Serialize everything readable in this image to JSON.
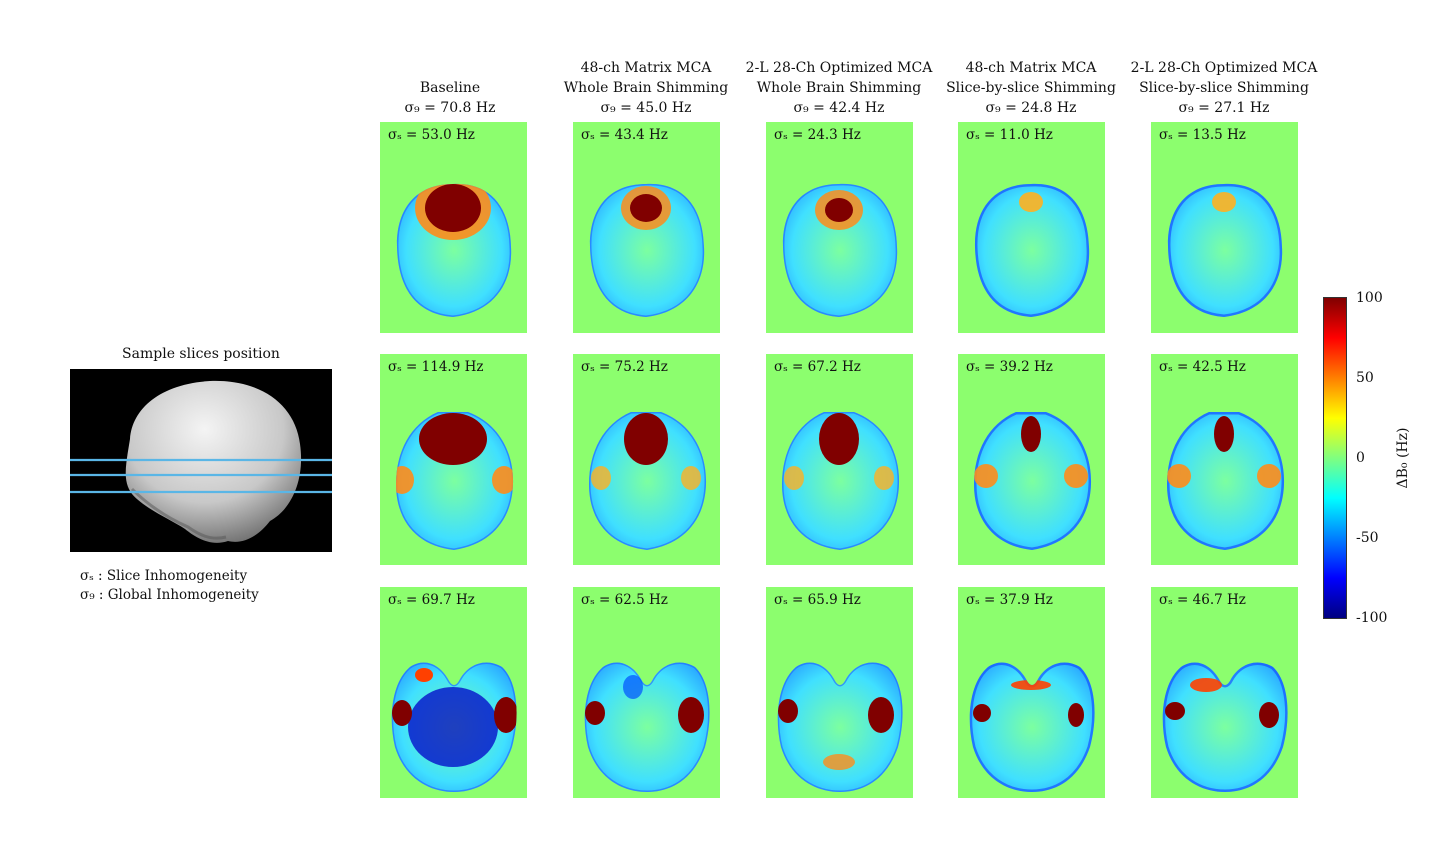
{
  "columns": [
    {
      "line1": "",
      "line2": "Baseline",
      "sigma_g": "σ₉ = 70.8 Hz"
    },
    {
      "line1": "48-ch Matrix MCA",
      "line2": "Whole Brain Shimming",
      "sigma_g": "σ₉ = 45.0 Hz"
    },
    {
      "line1": "2-L 28-Ch Optimized MCA",
      "line2": "Whole Brain Shimming",
      "sigma_g": "σ₉ = 42.4 Hz"
    },
    {
      "line1": "48-ch Matrix MCA",
      "line2": "Slice-by-slice Shimming",
      "sigma_g": "σ₉ = 24.8 Hz"
    },
    {
      "line1": "2-L 28-Ch Optimized MCA",
      "line2": "Slice-by-slice Shimming",
      "sigma_g": "σ₉ = 27.1 Hz"
    }
  ],
  "rows": [
    [
      "σₛ = 53.0 Hz",
      "σₛ = 43.4 Hz",
      "σₛ = 24.3 Hz",
      "σₛ = 11.0 Hz",
      "σₛ = 13.5 Hz"
    ],
    [
      "σₛ = 114.9 Hz",
      "σₛ = 75.2 Hz",
      "σₛ = 67.2 Hz",
      "σₛ = 39.2 Hz",
      "σₛ = 42.5 Hz"
    ],
    [
      "σₛ = 69.7 Hz",
      "σₛ = 62.5 Hz",
      "σₛ = 65.9 Hz",
      "σₛ = 37.9 Hz",
      "σₛ = 46.7 Hz"
    ]
  ],
  "side_panel": {
    "title": "Sample slices position",
    "legend": [
      "σₛ : Slice Inhomogeneity",
      "σ₉ : Global Inhomogeneity"
    ]
  },
  "colorbar": {
    "label": "ΔB₀ (Hz)",
    "ticks": [
      "100",
      "50",
      "0",
      "-50",
      "-100"
    ],
    "range": [
      -100,
      100
    ],
    "colormap": "jet",
    "background_color": "#8cfe6e"
  }
}
